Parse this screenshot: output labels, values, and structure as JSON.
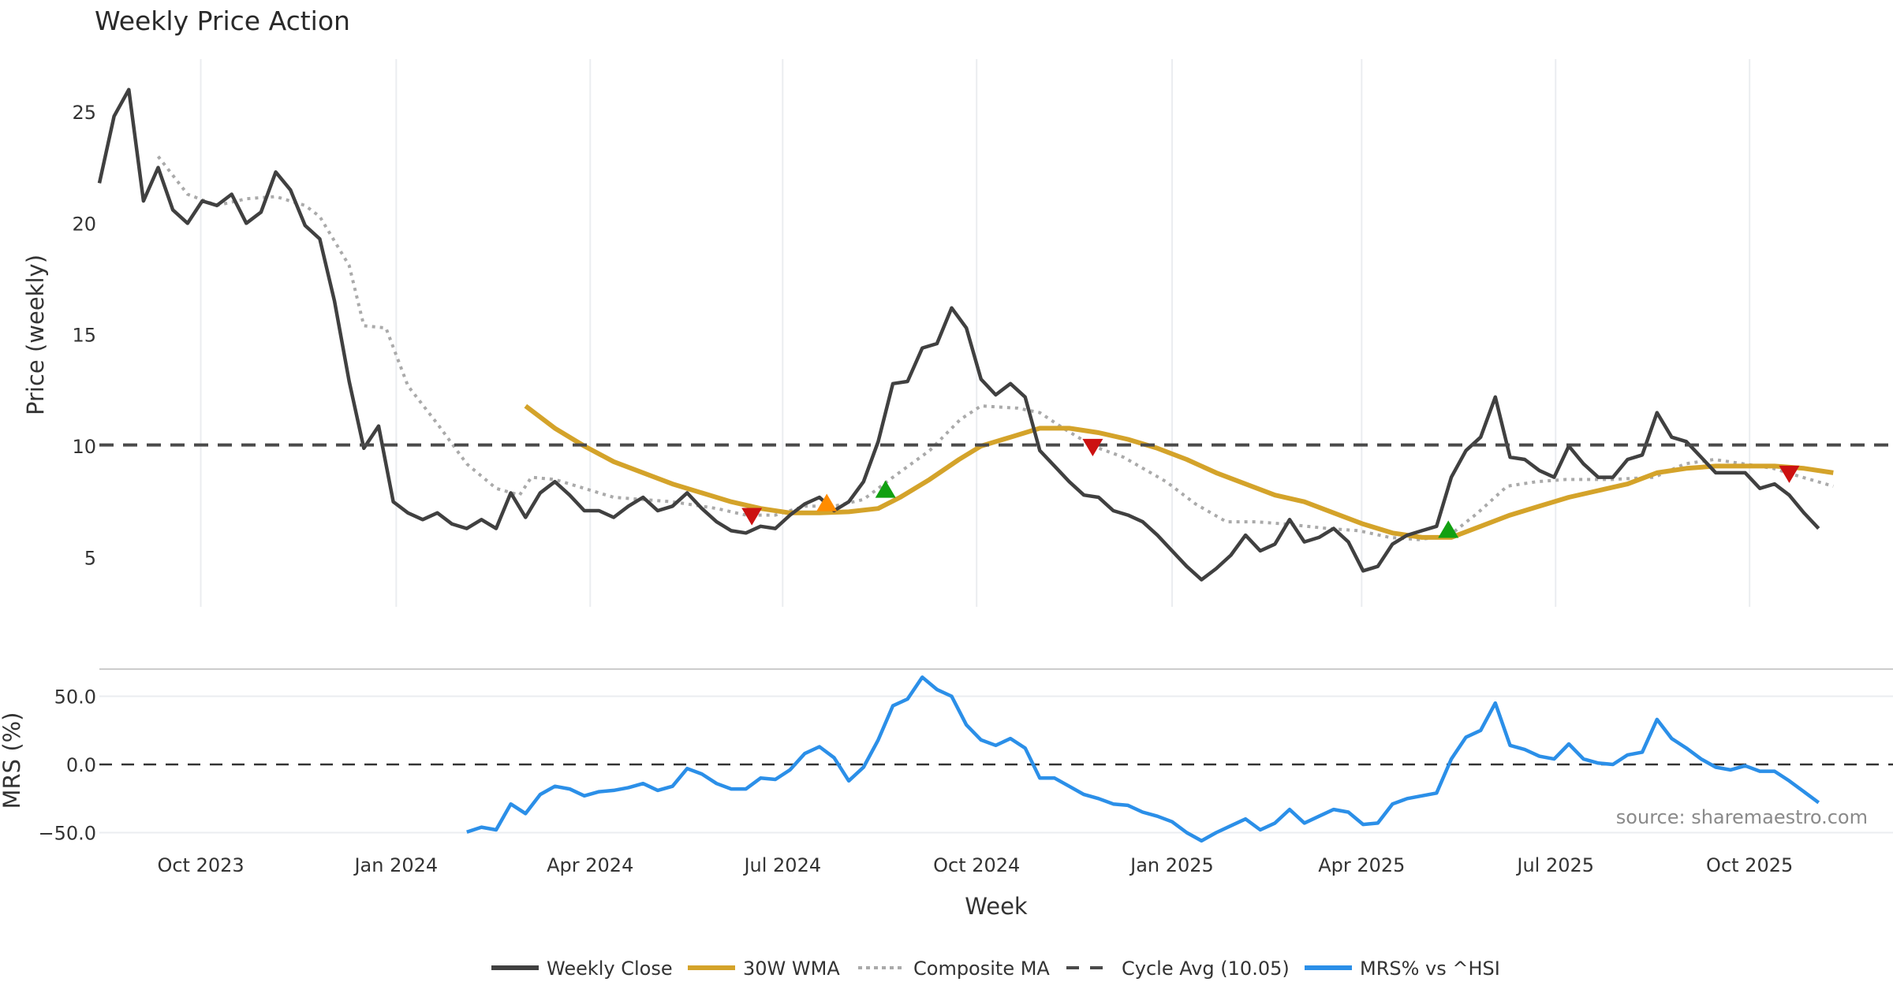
{
  "chart_data": [
    {
      "type": "line",
      "panel": "price",
      "title": "Weekly Price Action",
      "xlabel": "Week",
      "ylabel": "Price (weekly)",
      "ylim": [
        2.3,
        27.5
      ],
      "yticks": [
        5,
        10,
        15,
        20,
        25
      ],
      "grid": "vertical",
      "x_unit": "week index (0 ≈ mid-Aug 2023)",
      "xlim": [
        0,
        118
      ],
      "series": [
        {
          "name": "Weekly Close",
          "color": "#404040",
          "style": "solid",
          "start_index": 0,
          "values": [
            21.8,
            24.8,
            26.0,
            21.0,
            22.5,
            20.6,
            20.0,
            21.0,
            20.8,
            21.3,
            20.0,
            20.5,
            22.3,
            21.5,
            19.9,
            19.3,
            16.5,
            12.9,
            9.9,
            10.9,
            7.5,
            7.0,
            6.7,
            7.0,
            6.5,
            6.3,
            6.7,
            6.3,
            7.9,
            6.8,
            7.9,
            8.4,
            7.8,
            7.1,
            7.1,
            6.8,
            7.3,
            7.7,
            7.1,
            7.3,
            7.9,
            7.2,
            6.6,
            6.2,
            6.1,
            6.4,
            6.3,
            6.9,
            7.4,
            7.7,
            7.1,
            7.5,
            8.4,
            10.2,
            12.8,
            12.9,
            14.4,
            14.6,
            16.2,
            15.3,
            13.0,
            12.3,
            12.8,
            12.2,
            9.8,
            9.1,
            8.4,
            7.8,
            7.7,
            7.1,
            6.9,
            6.6,
            6.0,
            5.3,
            4.6,
            4.0,
            4.5,
            5.1,
            6.0,
            5.3,
            5.6,
            6.7,
            5.7,
            5.9,
            6.3,
            5.7,
            4.4,
            4.6,
            5.6,
            6.0,
            6.2,
            6.4,
            8.6,
            9.8,
            10.4,
            12.2,
            9.5,
            9.4,
            8.9,
            8.6,
            10.0,
            9.2,
            8.6,
            8.6,
            9.4,
            9.6,
            11.5,
            10.4,
            10.2,
            9.5,
            8.8,
            8.8,
            8.8,
            8.1,
            8.3,
            7.8,
            7.0,
            6.3
          ]
        },
        {
          "name": "30W WMA",
          "color": "#D4A32A",
          "style": "solid",
          "points": [
            [
              29,
              11.8
            ],
            [
              31,
              10.8
            ],
            [
              33,
              10.0
            ],
            [
              35,
              9.3
            ],
            [
              37,
              8.8
            ],
            [
              39,
              8.3
            ],
            [
              41,
              7.9
            ],
            [
              43,
              7.5
            ],
            [
              45,
              7.2
            ],
            [
              47,
              7.0
            ],
            [
              49,
              7.0
            ],
            [
              51,
              7.05
            ],
            [
              53,
              7.2
            ],
            [
              54.5,
              7.7
            ],
            [
              56.5,
              8.5
            ],
            [
              58.5,
              9.4
            ],
            [
              60,
              10.0
            ],
            [
              62,
              10.4
            ],
            [
              64,
              10.8
            ],
            [
              66,
              10.8
            ],
            [
              68,
              10.6
            ],
            [
              70,
              10.3
            ],
            [
              72,
              9.9
            ],
            [
              74,
              9.4
            ],
            [
              76,
              8.8
            ],
            [
              78,
              8.3
            ],
            [
              80,
              7.8
            ],
            [
              82,
              7.5
            ],
            [
              84,
              7.0
            ],
            [
              86,
              6.5
            ],
            [
              88,
              6.1
            ],
            [
              90,
              5.9
            ],
            [
              92,
              5.9
            ],
            [
              94,
              6.4
            ],
            [
              96,
              6.9
            ],
            [
              98,
              7.3
            ],
            [
              100,
              7.7
            ],
            [
              102,
              8.0
            ],
            [
              104,
              8.3
            ],
            [
              106,
              8.8
            ],
            [
              108,
              9.0
            ],
            [
              110,
              9.1
            ],
            [
              112,
              9.1
            ],
            [
              114,
              9.1
            ],
            [
              116,
              9.0
            ],
            [
              118,
              8.8
            ]
          ]
        },
        {
          "name": "Composite MA",
          "color": "#AAAAAA",
          "style": "dotted",
          "points": [
            [
              4,
              23.0
            ],
            [
              6,
              21.3
            ],
            [
              8,
              20.8
            ],
            [
              10,
              21.1
            ],
            [
              12,
              21.2
            ],
            [
              14,
              20.8
            ],
            [
              15,
              20.3
            ],
            [
              17,
              18.1
            ],
            [
              18,
              15.4
            ],
            [
              19.5,
              15.3
            ],
            [
              21,
              12.7
            ],
            [
              23,
              11.0
            ],
            [
              25,
              9.2
            ],
            [
              27,
              8.1
            ],
            [
              28.6,
              7.8
            ],
            [
              29.4,
              8.6
            ],
            [
              31,
              8.5
            ],
            [
              33,
              8.1
            ],
            [
              35,
              7.7
            ],
            [
              39,
              7.5
            ],
            [
              42,
              7.2
            ],
            [
              44,
              6.9
            ],
            [
              46,
              6.9
            ],
            [
              48,
              7.3
            ],
            [
              50,
              7.3
            ],
            [
              52,
              7.6
            ],
            [
              54,
              8.6
            ],
            [
              56.5,
              9.8
            ],
            [
              58.6,
              11.2
            ],
            [
              60,
              11.8
            ],
            [
              62.5,
              11.7
            ],
            [
              64,
              11.5
            ],
            [
              65.6,
              10.8
            ],
            [
              67.6,
              10.0
            ],
            [
              69.7,
              9.5
            ],
            [
              72.6,
              8.4
            ],
            [
              74.6,
              7.4
            ],
            [
              76.7,
              6.6
            ],
            [
              78.7,
              6.6
            ],
            [
              80.7,
              6.5
            ],
            [
              83.6,
              6.3
            ],
            [
              85.7,
              6.2
            ],
            [
              87.8,
              5.9
            ],
            [
              89.8,
              5.8
            ],
            [
              91.9,
              6.0
            ],
            [
              93.8,
              7.0
            ],
            [
              95.8,
              8.2
            ],
            [
              97.8,
              8.4
            ],
            [
              99.8,
              8.5
            ],
            [
              102.9,
              8.5
            ],
            [
              105.8,
              8.6
            ],
            [
              107.9,
              9.2
            ],
            [
              109.9,
              9.4
            ],
            [
              111.9,
              9.2
            ],
            [
              113.9,
              9.0
            ],
            [
              115.9,
              8.6
            ],
            [
              118,
              8.2
            ]
          ]
        },
        {
          "name": "Cycle Avg (10.05)",
          "color": "#4A4A4A",
          "style": "dashed",
          "constant": 10.05
        }
      ],
      "markers": [
        {
          "type": "sell",
          "shape": "triangle-down",
          "color": "#CC1111",
          "index": 44.4,
          "value": 6.9
        },
        {
          "type": "buy-weak",
          "shape": "triangle-up",
          "color": "#FF8C00",
          "index": 49.5,
          "value": 7.4
        },
        {
          "type": "buy",
          "shape": "triangle-up",
          "color": "#11A011",
          "index": 53.5,
          "value": 8.0
        },
        {
          "type": "sell",
          "shape": "triangle-down",
          "color": "#CC1111",
          "index": 67.6,
          "value": 10.0
        },
        {
          "type": "buy",
          "shape": "triangle-up",
          "color": "#11A011",
          "index": 91.8,
          "value": 6.2
        },
        {
          "type": "sell",
          "shape": "triangle-down",
          "color": "#CC1111",
          "index": 115.0,
          "value": 8.8
        }
      ]
    },
    {
      "type": "line",
      "panel": "mrs",
      "ylabel": "MRS (%)",
      "ylim": [
        -62,
        72
      ],
      "yticks": [
        50,
        0,
        -50
      ],
      "ytick_labels": [
        "50.0",
        "0.0",
        "−50.0"
      ],
      "series": [
        {
          "name": "MRS% vs ^HSI",
          "color": "#2B8FE8",
          "style": "solid",
          "start_index": 25,
          "values": [
            -49.6,
            -46,
            -48,
            -29,
            -36,
            -22,
            -16,
            -18,
            -23,
            -20,
            -19,
            -17,
            -14,
            -19,
            -16,
            -3,
            -7,
            -14,
            -18,
            -18,
            -10,
            -11,
            -4,
            8,
            13,
            5,
            -12,
            -2,
            18,
            43,
            48,
            64,
            55,
            50,
            29,
            18,
            14,
            19,
            12,
            -10,
            -10,
            -16,
            -22,
            -25,
            -29,
            -30,
            -35,
            -38,
            -42,
            -50,
            -56,
            -50,
            -45,
            -40,
            -48,
            -43,
            -33,
            -43,
            -38,
            -33,
            -35,
            -44,
            -43,
            -29,
            -25,
            -23,
            -21,
            4,
            20,
            25,
            45,
            14,
            11,
            6,
            4,
            15,
            4,
            1,
            0,
            7,
            9,
            33,
            19,
            12,
            4,
            -2,
            -4,
            -1,
            -5,
            -5,
            -12,
            -20,
            -28
          ]
        },
        {
          "name": "zero line",
          "color": "#333333",
          "style": "dashed",
          "constant": 0
        }
      ],
      "annotation": "source: sharemaestro.com"
    }
  ],
  "x_axis": {
    "label": "Week",
    "ticks": [
      {
        "label": "Oct 2023",
        "index": 6.9
      },
      {
        "label": "Jan 2024",
        "index": 20.2
      },
      {
        "label": "Apr 2024",
        "index": 33.4
      },
      {
        "label": "Jul 2024",
        "index": 46.5
      },
      {
        "label": "Oct 2024",
        "index": 59.7
      },
      {
        "label": "Jan 2025",
        "index": 73.0
      },
      {
        "label": "Apr 2025",
        "index": 85.9
      },
      {
        "label": "Jul 2025",
        "index": 99.1
      },
      {
        "label": "Oct 2025",
        "index": 112.3
      }
    ]
  },
  "legend": {
    "placement": "bottom-center",
    "items": [
      {
        "label": "Weekly Close",
        "color": "#404040",
        "style": "solid"
      },
      {
        "label": "30W WMA",
        "color": "#D4A32A",
        "style": "solid"
      },
      {
        "label": "Composite MA",
        "color": "#AAAAAA",
        "style": "dotted"
      },
      {
        "label": "Cycle Avg (10.05)",
        "color": "#4A4A4A",
        "style": "dashed"
      },
      {
        "label": "MRS% vs ^HSI",
        "color": "#2B8FE8",
        "style": "solid"
      }
    ]
  }
}
